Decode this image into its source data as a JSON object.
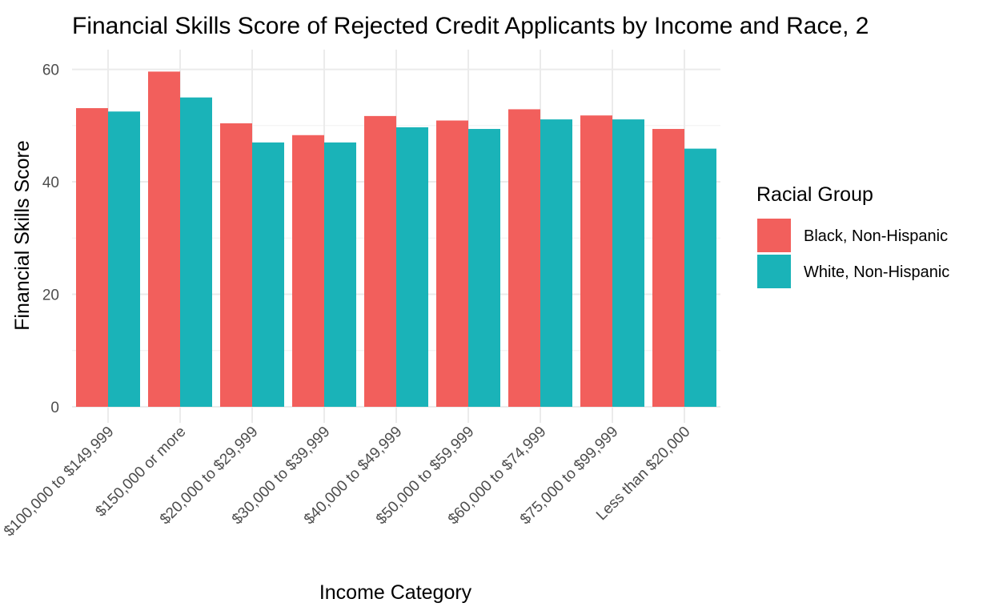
{
  "chart_data": {
    "type": "bar",
    "title": "Financial Skills Score of Rejected Credit Applicants by Income and Race, 2",
    "xlabel": "Income Category",
    "ylabel": "Financial Skills Score",
    "ylim": [
      0,
      63.5
    ],
    "yticks": [
      0,
      20,
      40,
      60
    ],
    "grid": true,
    "legend_title": "Racial Group",
    "legend_position": "right",
    "categories": [
      "$100,000 to $149,999",
      "$150,000 or more",
      "$20,000 to $29,999",
      "$30,000 to $39,999",
      "$40,000 to $49,999",
      "$50,000 to $59,999",
      "$60,000 to $74,999",
      "$75,000 to $99,999",
      "Less than $20,000"
    ],
    "series": [
      {
        "name": "Black, Non-Hispanic",
        "color": "#F25F5C",
        "values": [
          53.1,
          59.6,
          50.4,
          48.3,
          51.7,
          50.9,
          52.9,
          51.8,
          49.4
        ]
      },
      {
        "name": "White, Non-Hispanic",
        "color": "#1AB3B8",
        "values": [
          52.5,
          55.0,
          47.0,
          47.0,
          49.7,
          49.4,
          51.1,
          51.1,
          45.9
        ]
      }
    ]
  }
}
